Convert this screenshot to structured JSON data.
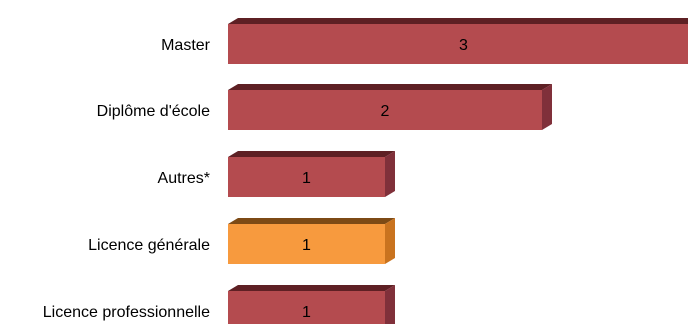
{
  "chart_data": {
    "type": "bar",
    "orientation": "horizontal",
    "style": "3d",
    "categories": [
      "Master",
      "Diplôme d'école",
      "Autres*",
      "Licence générale",
      "Licence professionnelle"
    ],
    "values": [
      3,
      2,
      1,
      1,
      1
    ],
    "data_labels": [
      "3",
      "2",
      "1",
      "1",
      "1"
    ],
    "xlim": [
      0,
      3
    ],
    "grid": false,
    "legend": "none",
    "colors": {
      "default_front": "#b44b4f",
      "default_top": "#5e2024",
      "default_side": "#80303a",
      "highlight_front": "#f79a3e",
      "highlight_top": "#7d4a15",
      "highlight_side": "#c9731f"
    },
    "highlight_index": 3
  }
}
